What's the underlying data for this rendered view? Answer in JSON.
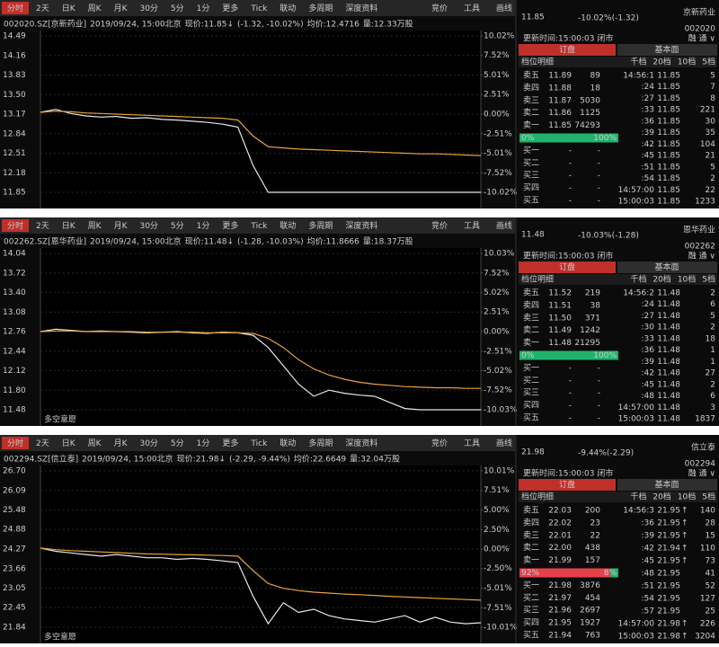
{
  "panels": [
    {
      "toolbar": [
        "分时",
        "2天",
        "日K",
        "周K",
        "月K",
        "30分",
        "5分",
        "1分",
        "更多",
        "Tick",
        "联动",
        "多周期",
        "深度资料"
      ],
      "tools": [
        "竞价",
        "工具",
        "画线"
      ],
      "info": {
        "code": "002020.SZ[京新药业]",
        "time": "2019/09/24, 15:00北京",
        "price": "现价:11.85↓",
        "change": "(-1.32, -10.02%)",
        "avg": "均价:12.4716",
        "vol": "量:12.33万股"
      },
      "chart": {
        "type": "line",
        "ylim": [
          11.85,
          14.49
        ],
        "yticks": [
          14.49,
          14.16,
          13.83,
          {
            "value": 13.5,
            "label": "13.50"
          },
          13.17,
          12.84,
          12.51,
          12.18,
          11.85
        ],
        "y2lim": [
          -10.02,
          10.02
        ],
        "y2ticks": [
          {
            "value": 10.02,
            "label": "10.02%"
          },
          {
            "value": 7.52,
            "label": "7.52%"
          },
          {
            "value": 5.01,
            "label": "5.01%"
          },
          {
            "value": 2.51,
            "label": "2.51%"
          },
          {
            "value": 0,
            "label": "0.00%"
          },
          {
            "value": -2.51,
            "label": "-2.51%"
          },
          {
            "value": -5.01,
            "label": "-5.01%"
          },
          {
            "value": -7.52,
            "label": "-7.52%"
          },
          {
            "value": -10.02,
            "label": "-10.02%"
          }
        ],
        "series": [
          {
            "color": "#e8e8e8",
            "values": [
              13.2,
              13.25,
              13.18,
              13.14,
              13.12,
              13.13,
              13.1,
              13.11,
              13.08,
              13.07,
              13.05,
              13.03,
              13.0,
              12.95,
              12.3,
              11.85,
              11.85,
              11.85,
              11.85,
              11.85,
              11.85,
              11.85,
              11.85,
              11.85,
              11.85,
              11.85,
              11.85,
              11.85,
              11.85,
              11.85
            ]
          },
          {
            "color": "#e8a33c",
            "values": [
              13.2,
              13.22,
              13.21,
              13.19,
              13.18,
              13.17,
              13.16,
              13.15,
              13.14,
              13.13,
              13.12,
              13.11,
              13.1,
              13.07,
              12.8,
              12.62,
              12.6,
              12.58,
              12.57,
              12.56,
              12.55,
              12.54,
              12.53,
              12.52,
              12.51,
              12.5,
              12.5,
              12.49,
              12.48,
              12.47
            ]
          }
        ]
      },
      "quote": {
        "price": "11.85",
        "change": "-10.02%(-1.32)",
        "name": "京新药业",
        "code": "002020",
        "update": "更新时间:15:00:03 闭市",
        "flags": "融 通 ∨"
      },
      "tabs": [
        "订盘",
        "基本面"
      ],
      "detail": "档位明细",
      "levels": [
        "千档",
        "20档",
        "10档",
        "5档"
      ],
      "book": [
        {
          "side": "卖五",
          "price": "11.89",
          "vol": "89"
        },
        {
          "side": "卖四",
          "price": "11.88",
          "vol": "18"
        },
        {
          "side": "卖三",
          "price": "11.87",
          "vol": "5030"
        },
        {
          "side": "卖二",
          "price": "11.86",
          "vol": "1125"
        },
        {
          "side": "卖一",
          "price": "11.85",
          "vol": "74293"
        },
        {
          "side": "买一",
          "price": "-",
          "vol": "-"
        },
        {
          "side": "买二",
          "price": "-",
          "vol": "-"
        },
        {
          "side": "买三",
          "price": "-",
          "vol": "-"
        },
        {
          "side": "买四",
          "price": "-",
          "vol": "-"
        },
        {
          "side": "买五",
          "price": "-",
          "vol": "-"
        }
      ],
      "ratio": [
        {
          "value": 0,
          "label": "0%"
        },
        {
          "value": 100,
          "label": "100%"
        }
      ],
      "trades": [
        {
          "t": "14:56:1",
          "p": "11.85",
          "v": "5"
        },
        {
          "t": ":24",
          "p": "11.85",
          "v": "7"
        },
        {
          "t": ":27",
          "p": "11.85",
          "v": "8"
        },
        {
          "t": ":33",
          "p": "11.85",
          "v": "221"
        },
        {
          "t": ":36",
          "p": "11.85",
          "v": "30"
        },
        {
          "t": ":39",
          "p": "11.85",
          "v": "35"
        },
        {
          "t": ":42",
          "p": "11.85",
          "v": "104"
        },
        {
          "t": ":45",
          "p": "11.85",
          "v": "21"
        },
        {
          "t": ":51",
          "p": "11.85",
          "v": "5"
        },
        {
          "t": ":54",
          "p": "11.85",
          "v": "2"
        },
        {
          "t": "14:57:00",
          "p": "11.85",
          "v": "22"
        },
        {
          "t": "15:00:03",
          "p": "11.85",
          "v": "1233"
        }
      ]
    },
    {
      "toolbar": [
        "分时",
        "2天",
        "日K",
        "周K",
        "月K",
        "30分",
        "5分",
        "1分",
        "更多",
        "Tick",
        "联动",
        "多周期",
        "深度资料"
      ],
      "tools": [
        "竞价",
        "工具",
        "画线"
      ],
      "info": {
        "code": "002262.SZ[恩华药业]",
        "time": "2019/09/24, 15:00北京",
        "price": "现价:11.48↓",
        "change": "(-1.28, -10.03%)",
        "avg": "均价:11.8666",
        "vol": "量:18.37万股"
      },
      "chart": {
        "type": "line",
        "ylim": [
          11.48,
          14.04
        ],
        "yticks": [
          14.04,
          13.72,
          {
            "value": 13.4,
            "label": "13.40"
          },
          13.08,
          12.76,
          12.44,
          12.12,
          {
            "value": 11.8,
            "label": "11.80"
          },
          11.48
        ],
        "y2lim": [
          -10.03,
          10.03
        ],
        "y2ticks": [
          {
            "value": 10.03,
            "label": "10.03%"
          },
          {
            "value": 7.52,
            "label": "7.52%"
          },
          {
            "value": 5.02,
            "label": "5.02%"
          },
          {
            "value": 2.51,
            "label": "2.51%"
          },
          {
            "value": 0,
            "label": "0.00%"
          },
          {
            "value": -2.51,
            "label": "-2.51%"
          },
          {
            "value": -5.02,
            "label": "-5.02%"
          },
          {
            "value": -7.52,
            "label": "-7.52%"
          },
          {
            "value": -10.03,
            "label": "-10.03%"
          }
        ],
        "series": [
          {
            "color": "#e8e8e8",
            "values": [
              12.76,
              12.8,
              12.78,
              12.76,
              12.77,
              12.76,
              12.75,
              12.74,
              12.75,
              12.76,
              12.74,
              12.73,
              12.75,
              12.74,
              12.7,
              12.5,
              12.2,
              11.9,
              11.7,
              11.8,
              11.75,
              11.72,
              11.7,
              11.6,
              11.5,
              11.48,
              11.48,
              11.48,
              11.48,
              11.48
            ]
          },
          {
            "color": "#e8a33c",
            "values": [
              12.76,
              12.77,
              12.77,
              12.76,
              12.76,
              12.76,
              12.76,
              12.75,
              12.75,
              12.75,
              12.75,
              12.74,
              12.74,
              12.74,
              12.73,
              12.65,
              12.5,
              12.3,
              12.15,
              12.05,
              11.98,
              11.93,
              11.9,
              11.88,
              11.86,
              11.85,
              11.84,
              11.84,
              11.83,
              11.83
            ]
          }
        ],
        "note": "多空意愿"
      },
      "quote": {
        "price": "11.48",
        "change": "-10.03%(-1.28)",
        "name": "恩华药业",
        "code": "002262",
        "update": "更新时间:15:00:03 闭市",
        "flags": "融 通 ∨"
      },
      "tabs": [
        "订盘",
        "基本面"
      ],
      "detail": "档位明细",
      "levels": [
        "千档",
        "20档",
        "10档",
        "5档"
      ],
      "book": [
        {
          "side": "卖五",
          "price": "11.52",
          "vol": "219"
        },
        {
          "side": "卖四",
          "price": "11.51",
          "vol": "38"
        },
        {
          "side": "卖三",
          "price": "11.50",
          "vol": "371"
        },
        {
          "side": "卖二",
          "price": "11.49",
          "vol": "1242"
        },
        {
          "side": "卖一",
          "price": "11.48",
          "vol": "21295"
        },
        {
          "side": "买一",
          "price": "-",
          "vol": "-"
        },
        {
          "side": "买二",
          "price": "-",
          "vol": "-"
        },
        {
          "side": "买三",
          "price": "-",
          "vol": "-"
        },
        {
          "side": "买四",
          "price": "-",
          "vol": "-"
        },
        {
          "side": "买五",
          "price": "-",
          "vol": "-"
        }
      ],
      "ratio": [
        {
          "value": 0,
          "label": "0%"
        },
        {
          "value": 100,
          "label": "100%"
        }
      ],
      "trades": [
        {
          "t": "14:56:2",
          "p": "11.48",
          "v": "2"
        },
        {
          "t": ":24",
          "p": "11.48",
          "v": "6"
        },
        {
          "t": ":27",
          "p": "11.48",
          "v": "5"
        },
        {
          "t": ":30",
          "p": "11.48",
          "v": "2"
        },
        {
          "t": ":33",
          "p": "11.48",
          "v": "18"
        },
        {
          "t": ":36",
          "p": "11.48",
          "v": "1"
        },
        {
          "t": ":39",
          "p": "11.48",
          "v": "1"
        },
        {
          "t": ":42",
          "p": "11.48",
          "v": "27"
        },
        {
          "t": ":45",
          "p": "11.48",
          "v": "2"
        },
        {
          "t": ":48",
          "p": "11.48",
          "v": "6"
        },
        {
          "t": "14:57:00",
          "p": "11.48",
          "v": "3"
        },
        {
          "t": "15:00:03",
          "p": "11.48",
          "v": "1837"
        }
      ]
    },
    {
      "toolbar": [
        "分时",
        "2天",
        "日K",
        "周K",
        "月K",
        "30分",
        "5分",
        "1分",
        "更多",
        "Tick",
        "联动",
        "多周期",
        "深度资料"
      ],
      "tools": [
        "竞价",
        "工具",
        "画线"
      ],
      "info": {
        "code": "002294.SZ[信立泰]",
        "time": "2019/09/24, 15:00北京",
        "price": "现价:21.98↓",
        "change": "(-2.29, -9.44%)",
        "avg": "均价:22.6649",
        "vol": "量:32.04万股"
      },
      "chart": {
        "type": "line",
        "ylim": [
          21.84,
          26.7
        ],
        "yticks": [
          {
            "value": 26.7,
            "label": "26.70"
          },
          26.09,
          25.48,
          24.88,
          24.27,
          23.66,
          23.05,
          22.45,
          21.84
        ],
        "y2lim": [
          -10.01,
          10.01
        ],
        "y2ticks": [
          {
            "value": 10.01,
            "label": "10.01%"
          },
          {
            "value": 7.51,
            "label": "7.51%"
          },
          {
            "value": 5,
            "label": "5.00%"
          },
          {
            "value": 2.5,
            "label": "2.50%"
          },
          {
            "value": 0,
            "label": "0.00%"
          },
          {
            "value": -2.5,
            "label": "-2.50%"
          },
          {
            "value": -5.01,
            "label": "-5.01%"
          },
          {
            "value": -7.51,
            "label": "-7.51%"
          },
          {
            "value": -10.01,
            "label": "-10.01%"
          }
        ],
        "series": [
          {
            "color": "#e8e8e8",
            "values": [
              24.3,
              24.2,
              24.15,
              24.1,
              24.05,
              24.1,
              24.05,
              24.0,
              24.0,
              23.95,
              23.98,
              23.95,
              23.9,
              23.85,
              22.8,
              21.95,
              22.6,
              22.3,
              22.4,
              22.2,
              22.1,
              22.05,
              22.0,
              22.1,
              22.2,
              22.0,
              22.15,
              22.0,
              21.95,
              21.98
            ]
          },
          {
            "color": "#e8a33c",
            "values": [
              24.3,
              24.25,
              24.22,
              24.2,
              24.18,
              24.16,
              24.14,
              24.12,
              24.11,
              24.1,
              24.09,
              24.08,
              24.07,
              24.05,
              23.6,
              23.2,
              23.05,
              22.98,
              22.93,
              22.9,
              22.87,
              22.85,
              22.83,
              22.8,
              22.78,
              22.76,
              22.74,
              22.72,
              22.7,
              22.68
            ]
          }
        ],
        "note": "多空意愿"
      },
      "quote": {
        "price": "21.98",
        "change": "-9.44%(-2.29)",
        "name": "信立泰",
        "code": "002294",
        "update": "更新时间:15:00:03 闭市",
        "flags": "融 通 ∨"
      },
      "tabs": [
        "订盘",
        "基本面"
      ],
      "detail": "档位明细",
      "levels": [
        "千档",
        "20档",
        "10档",
        "5档"
      ],
      "book": [
        {
          "side": "卖五",
          "price": "22.03",
          "vol": "200"
        },
        {
          "side": "卖四",
          "price": "22.02",
          "vol": "23"
        },
        {
          "side": "卖三",
          "price": "22.01",
          "vol": "22"
        },
        {
          "side": "卖二",
          "price": "22.00",
          "vol": "438"
        },
        {
          "side": "卖一",
          "price": "21.99",
          "vol": "157"
        },
        {
          "side": "买一",
          "price": "21.98",
          "vol": "3876"
        },
        {
          "side": "买二",
          "price": "21.97",
          "vol": "454"
        },
        {
          "side": "买三",
          "price": "21.96",
          "vol": "2697"
        },
        {
          "side": "买四",
          "price": "21.95",
          "vol": "1927"
        },
        {
          "side": "买五",
          "price": "21.94",
          "vol": "763"
        }
      ],
      "ratio": [
        {
          "value": 92,
          "label": "92%"
        },
        {
          "value": 8,
          "label": "8%"
        }
      ],
      "trades": [
        {
          "t": "14:56:3",
          "p": "21.95",
          "d": "↑",
          "v": "140"
        },
        {
          "t": ":36",
          "p": "21.95",
          "d": "↑",
          "v": "28"
        },
        {
          "t": ":39",
          "p": "21.95",
          "d": "↑",
          "v": "15"
        },
        {
          "t": ":42",
          "p": "21.94",
          "d": "↑",
          "v": "110"
        },
        {
          "t": ":45",
          "p": "21.95",
          "d": "↑",
          "v": "73"
        },
        {
          "t": ":48",
          "p": "21.95",
          "v": "41"
        },
        {
          "t": ":51",
          "p": "21.95",
          "v": "52"
        },
        {
          "t": ":54",
          "p": "21.95",
          "v": "127"
        },
        {
          "t": ":57",
          "p": "21.95",
          "v": "25"
        },
        {
          "t": "14:57:00",
          "p": "21.98",
          "d": "↑",
          "v": "226"
        },
        {
          "t": "15:00:03",
          "p": "21.98",
          "d": "↑",
          "v": "3204"
        }
      ]
    }
  ]
}
